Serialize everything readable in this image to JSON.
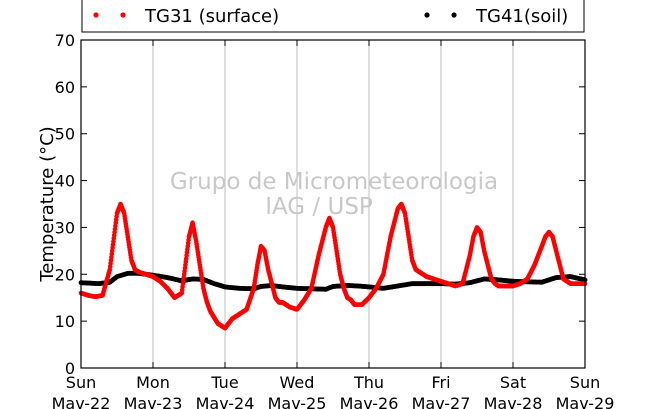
{
  "chart_data": {
    "type": "scatter",
    "ylabel": "Temperature (°C)",
    "ylim": [
      0,
      70
    ],
    "yticks": [
      0,
      10,
      20,
      30,
      40,
      50,
      60,
      70
    ],
    "xlim": [
      0,
      7
    ],
    "xtick_labels": [
      {
        "day": "Sun",
        "date": "Mav-22"
      },
      {
        "day": "Mon",
        "date": "Mav-23"
      },
      {
        "day": "Tue",
        "date": "Mav-24"
      },
      {
        "day": "Wed",
        "date": "Mav-25"
      },
      {
        "day": "Thu",
        "date": "Mav-26"
      },
      {
        "day": "Fri",
        "date": "Mav-27"
      },
      {
        "day": "Sat",
        "date": "Mav-28"
      },
      {
        "day": "Sun",
        "date": "Mav-29"
      }
    ],
    "grid": "vertical",
    "legend_position": "top",
    "watermark": [
      "Grupo de Micrometeorologia",
      "IAG / USP"
    ],
    "series": [
      {
        "name": "TG31 (surface)",
        "color": "#ff0000",
        "x": [
          0.0,
          0.1,
          0.2,
          0.3,
          0.4,
          0.45,
          0.5,
          0.55,
          0.6,
          0.65,
          0.7,
          0.75,
          0.8,
          0.9,
          1.0,
          1.1,
          1.2,
          1.3,
          1.4,
          1.45,
          1.5,
          1.55,
          1.6,
          1.65,
          1.7,
          1.75,
          1.8,
          1.9,
          2.0,
          2.1,
          2.2,
          2.3,
          2.4,
          2.45,
          2.5,
          2.55,
          2.6,
          2.65,
          2.7,
          2.75,
          2.8,
          2.9,
          3.0,
          3.1,
          3.2,
          3.3,
          3.4,
          3.45,
          3.5,
          3.55,
          3.6,
          3.65,
          3.7,
          3.75,
          3.8,
          3.9,
          4.0,
          4.1,
          4.2,
          4.3,
          4.4,
          4.45,
          4.5,
          4.55,
          4.6,
          4.65,
          4.7,
          4.75,
          4.8,
          4.9,
          5.0,
          5.1,
          5.2,
          5.3,
          5.4,
          5.45,
          5.5,
          5.55,
          5.6,
          5.65,
          5.7,
          5.75,
          5.8,
          5.9,
          6.0,
          6.1,
          6.2,
          6.3,
          6.4,
          6.45,
          6.5,
          6.55,
          6.6,
          6.65,
          6.7,
          6.75,
          6.8,
          6.9,
          7.0
        ],
        "y": [
          16,
          15.5,
          15.2,
          15.5,
          21,
          27,
          33,
          35,
          33,
          28,
          23,
          21,
          20.5,
          20,
          19.5,
          18.5,
          17,
          15,
          16,
          22,
          28,
          31,
          27,
          22,
          17,
          14,
          12,
          9.5,
          8.5,
          10.5,
          11.5,
          12.5,
          17,
          22,
          26,
          25,
          21,
          18,
          15,
          14,
          14,
          13,
          12.5,
          14.5,
          17,
          24,
          30,
          32,
          30,
          25,
          20,
          17,
          15,
          14.5,
          13.5,
          13.5,
          15,
          17,
          20,
          28,
          34,
          35,
          33,
          28,
          23,
          21,
          20.5,
          20,
          19.5,
          19,
          18.5,
          18,
          17.5,
          18,
          24,
          28,
          30,
          29,
          25,
          22,
          19,
          18,
          17.5,
          17.5,
          17.5,
          18,
          19,
          22,
          26,
          28,
          29,
          28,
          25,
          22,
          19,
          18.5,
          18,
          18,
          18
        ]
      },
      {
        "name": "TG41(soil)",
        "color": "#000000",
        "x": [
          0.0,
          0.25,
          0.4,
          0.5,
          0.65,
          0.8,
          1.0,
          1.2,
          1.4,
          1.55,
          1.7,
          1.85,
          2.0,
          2.2,
          2.4,
          2.5,
          2.65,
          2.8,
          3.0,
          3.2,
          3.4,
          3.5,
          3.7,
          3.85,
          4.0,
          4.2,
          4.4,
          4.6,
          4.8,
          5.0,
          5.2,
          5.4,
          5.6,
          5.8,
          6.0,
          6.2,
          6.4,
          6.6,
          6.8,
          7.0
        ],
        "y": [
          18.2,
          18.0,
          18.3,
          19.5,
          20.2,
          20.2,
          19.8,
          19.3,
          18.6,
          19.0,
          18.9,
          18.0,
          17.3,
          17.0,
          16.9,
          17.4,
          17.6,
          17.3,
          17.0,
          16.9,
          16.8,
          17.4,
          17.6,
          17.5,
          17.3,
          17.0,
          17.5,
          18.0,
          18.0,
          18.0,
          17.9,
          18.2,
          19.0,
          18.8,
          18.5,
          18.4,
          18.3,
          19.3,
          19.5,
          18.8
        ]
      }
    ]
  }
}
